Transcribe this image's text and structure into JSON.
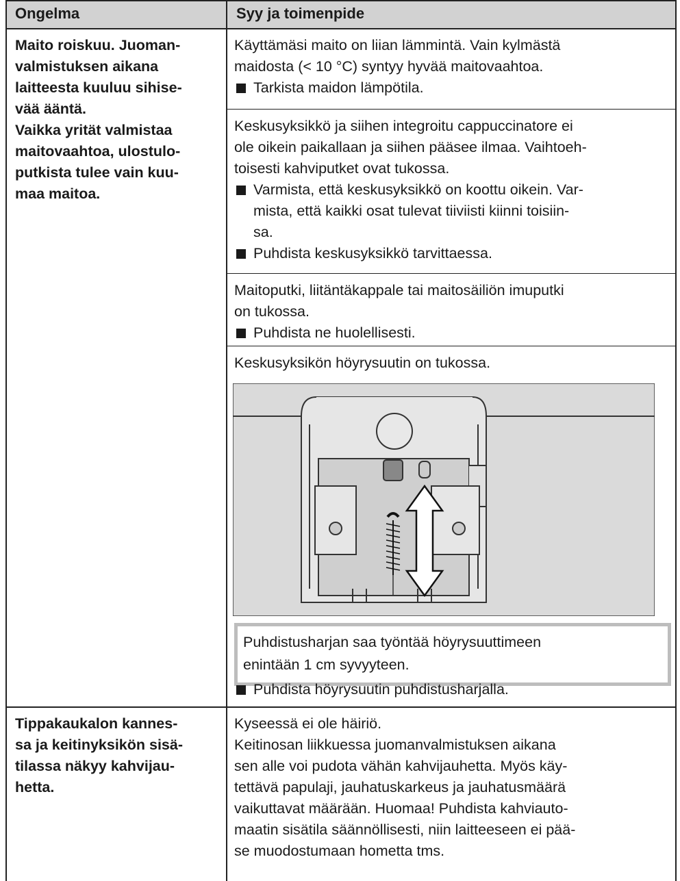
{
  "header": {
    "problem": "Ongelma",
    "cause": "Syy ja toimenpide"
  },
  "rows": [
    {
      "problem": [
        "Maito roiskuu. Juoman-",
        "valmistuksen aikana",
        "laitteesta kuuluu sihise-",
        "vää ääntä.",
        "Vaikka yrität valmistaa",
        "maitovaahtoa, ulostulo-",
        "putkista tulee vain kuu-",
        "maa maitoa."
      ],
      "causes": [
        {
          "text": [
            "Käyttämäsi maito on liian lämmintä. Vain kylmästä",
            "maidosta (< 10 °C) syntyy hyvää maitovaahtoa."
          ],
          "actions": [
            [
              "Tarkista maidon lämpötila."
            ]
          ]
        },
        {
          "text": [
            "Keskusyksikkö ja siihen integroitu cappuccinatore ei",
            "ole oikein paikallaan ja siihen pääsee ilmaa. Vaihtoeh-",
            "toisesti kahviputket ovat tukossa."
          ],
          "actions": [
            [
              "Varmista, että keskusyksikkö on koottu oikein. Var-",
              "mista, että kaikki osat tulevat tiiviisti kiinni toisiin-",
              "sa."
            ],
            [
              "Puhdista keskusyksikkö tarvittaessa."
            ]
          ]
        },
        {
          "text": [
            "Maitoputki, liitäntäkappale tai maitosäiliön imuputki",
            "on tukossa."
          ],
          "actions": [
            [
              "Puhdista ne huolellisesti."
            ]
          ]
        },
        {
          "text": [
            "Keskusyksikön höyrysuutin on tukossa."
          ],
          "note": [
            "Puhdistusharjan saa työntää höyrysuuttimeen",
            "enintään 1 cm syvyyteen."
          ],
          "actions": [
            [
              "Puhdista höyrysuutin puhdistusharjalla."
            ]
          ]
        }
      ]
    },
    {
      "problem": [
        "Tippakaukalon kannes-",
        "sa ja keitinyksikön sisä-",
        "tilassa näkyy kahvijau-",
        "hetta."
      ],
      "causes": [
        {
          "text": [
            "Kyseessä ei ole häiriö.",
            "Keitinosan liikkuessa juomanvalmistuksen aikana",
            "sen alle voi pudota vähän kahvijauhetta. Myös käy-",
            "tettävä papulaji, jauhatuskarkeus ja jauhatusmäärä",
            "vaikuttavat määrään. Huomaa! Puhdista kahviauto-",
            "maatin sisätila säännöllisesti, niin laitteeseen ei pää-",
            "se muodostumaan hometta tms."
          ],
          "actions": []
        }
      ]
    }
  ]
}
